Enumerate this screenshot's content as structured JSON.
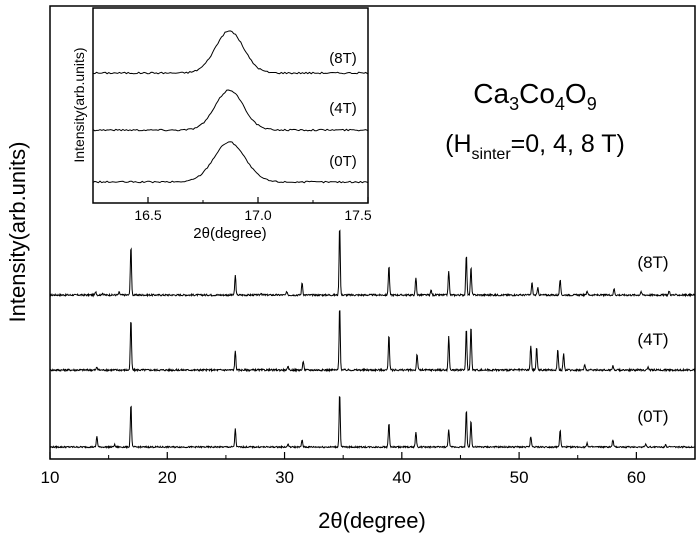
{
  "chart_data": [
    {
      "type": "line",
      "xlabel": "2θ(degree)",
      "ylabel": "Intensity(arb.units)",
      "xlim": [
        10,
        65
      ],
      "xticks": [
        10,
        20,
        30,
        40,
        50,
        60
      ],
      "grid": false,
      "annotation": {
        "compound": "Ca3Co4O9",
        "compound_parts": [
          "Ca",
          "3",
          "Co",
          "4",
          "O",
          "9"
        ],
        "condition_prefix": "(H",
        "condition_sub": "sinter",
        "condition_suffix": "=0, 4, 8 T)"
      },
      "series": [
        {
          "name": "(8T)",
          "baseline": 0.13,
          "noise": 0.012,
          "peaks": [
            {
              "x": 13.9,
              "h": 0.05
            },
            {
              "x": 14.5,
              "h": 0.03
            },
            {
              "x": 15.9,
              "h": 0.04
            },
            {
              "x": 16.9,
              "h": 0.7
            },
            {
              "x": 25.8,
              "h": 0.28
            },
            {
              "x": 28.0,
              "h": 0.03
            },
            {
              "x": 30.2,
              "h": 0.05
            },
            {
              "x": 31.5,
              "h": 0.18
            },
            {
              "x": 34.7,
              "h": 1.0
            },
            {
              "x": 38.9,
              "h": 0.42
            },
            {
              "x": 41.2,
              "h": 0.25
            },
            {
              "x": 42.5,
              "h": 0.07
            },
            {
              "x": 44.0,
              "h": 0.35
            },
            {
              "x": 45.5,
              "h": 0.58
            },
            {
              "x": 45.9,
              "h": 0.4
            },
            {
              "x": 51.1,
              "h": 0.18
            },
            {
              "x": 51.6,
              "h": 0.1
            },
            {
              "x": 53.5,
              "h": 0.22
            },
            {
              "x": 55.8,
              "h": 0.06
            },
            {
              "x": 58.1,
              "h": 0.09
            },
            {
              "x": 60.4,
              "h": 0.05
            },
            {
              "x": 62.8,
              "h": 0.06
            }
          ]
        },
        {
          "name": "(4T)",
          "baseline": 0.13,
          "noise": 0.012,
          "peaks": [
            {
              "x": 14.0,
              "h": 0.04
            },
            {
              "x": 16.9,
              "h": 0.68
            },
            {
              "x": 25.8,
              "h": 0.25
            },
            {
              "x": 30.3,
              "h": 0.04
            },
            {
              "x": 31.6,
              "h": 0.12
            },
            {
              "x": 34.7,
              "h": 0.85
            },
            {
              "x": 38.9,
              "h": 0.48
            },
            {
              "x": 41.3,
              "h": 0.22
            },
            {
              "x": 44.0,
              "h": 0.45
            },
            {
              "x": 45.5,
              "h": 0.55
            },
            {
              "x": 45.9,
              "h": 0.6
            },
            {
              "x": 51.0,
              "h": 0.32
            },
            {
              "x": 51.5,
              "h": 0.3
            },
            {
              "x": 53.3,
              "h": 0.28
            },
            {
              "x": 53.8,
              "h": 0.22
            },
            {
              "x": 55.6,
              "h": 0.07
            },
            {
              "x": 58.0,
              "h": 0.06
            },
            {
              "x": 61.0,
              "h": 0.04
            }
          ]
        },
        {
          "name": "(0T)",
          "baseline": 0.13,
          "noise": 0.012,
          "peaks": [
            {
              "x": 14.0,
              "h": 0.18
            },
            {
              "x": 15.5,
              "h": 0.04
            },
            {
              "x": 16.9,
              "h": 0.72
            },
            {
              "x": 25.8,
              "h": 0.3
            },
            {
              "x": 30.3,
              "h": 0.05
            },
            {
              "x": 31.5,
              "h": 0.12
            },
            {
              "x": 34.7,
              "h": 0.9
            },
            {
              "x": 38.9,
              "h": 0.4
            },
            {
              "x": 41.2,
              "h": 0.25
            },
            {
              "x": 44.0,
              "h": 0.3
            },
            {
              "x": 45.5,
              "h": 0.62
            },
            {
              "x": 45.9,
              "h": 0.45
            },
            {
              "x": 51.0,
              "h": 0.18
            },
            {
              "x": 53.5,
              "h": 0.28
            },
            {
              "x": 55.8,
              "h": 0.07
            },
            {
              "x": 58.0,
              "h": 0.12
            },
            {
              "x": 60.8,
              "h": 0.06
            },
            {
              "x": 62.5,
              "h": 0.05
            }
          ]
        }
      ]
    },
    {
      "type": "line",
      "role": "inset",
      "xlabel": "2θ(degree)",
      "ylabel": "Intensity(arb.units)",
      "xlim": [
        16.25,
        17.5
      ],
      "xticks": [
        16.5,
        17.0,
        17.5
      ],
      "xtick_labels": [
        "16.5",
        "17.0",
        "17.5"
      ],
      "grid": false,
      "series": [
        {
          "name": "(8T)",
          "center": 16.87,
          "height": 1.0,
          "width": 0.09,
          "baseline": 0.1
        },
        {
          "name": "(4T)",
          "center": 16.87,
          "height": 1.0,
          "width": 0.09,
          "baseline": 0.1
        },
        {
          "name": "(0T)",
          "center": 16.87,
          "height": 1.0,
          "width": 0.1,
          "baseline": 0.1
        }
      ]
    }
  ]
}
